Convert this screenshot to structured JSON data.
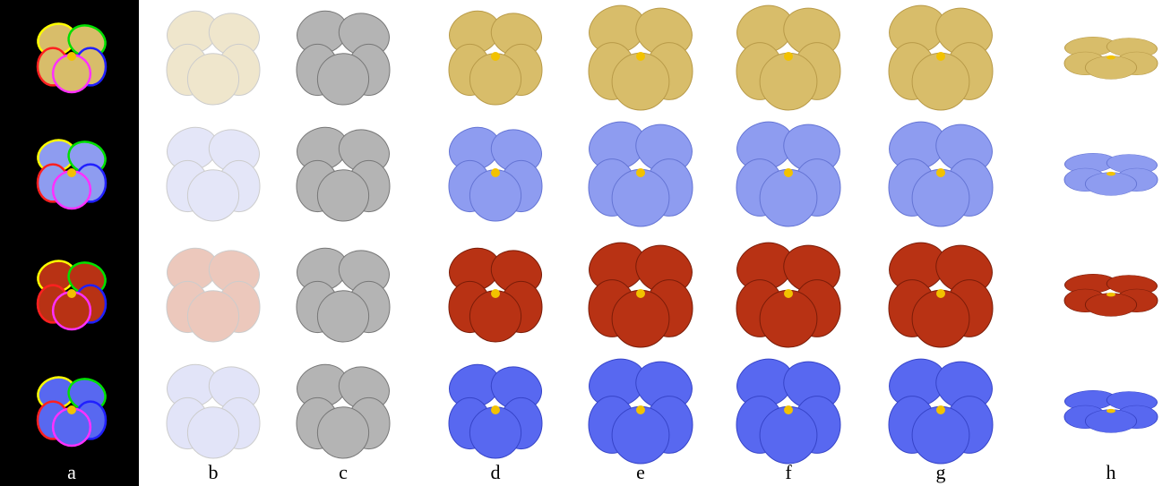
{
  "figure": {
    "panel_labels": [
      "a",
      "b",
      "c",
      "d",
      "e",
      "f",
      "g",
      "h"
    ]
  }
}
